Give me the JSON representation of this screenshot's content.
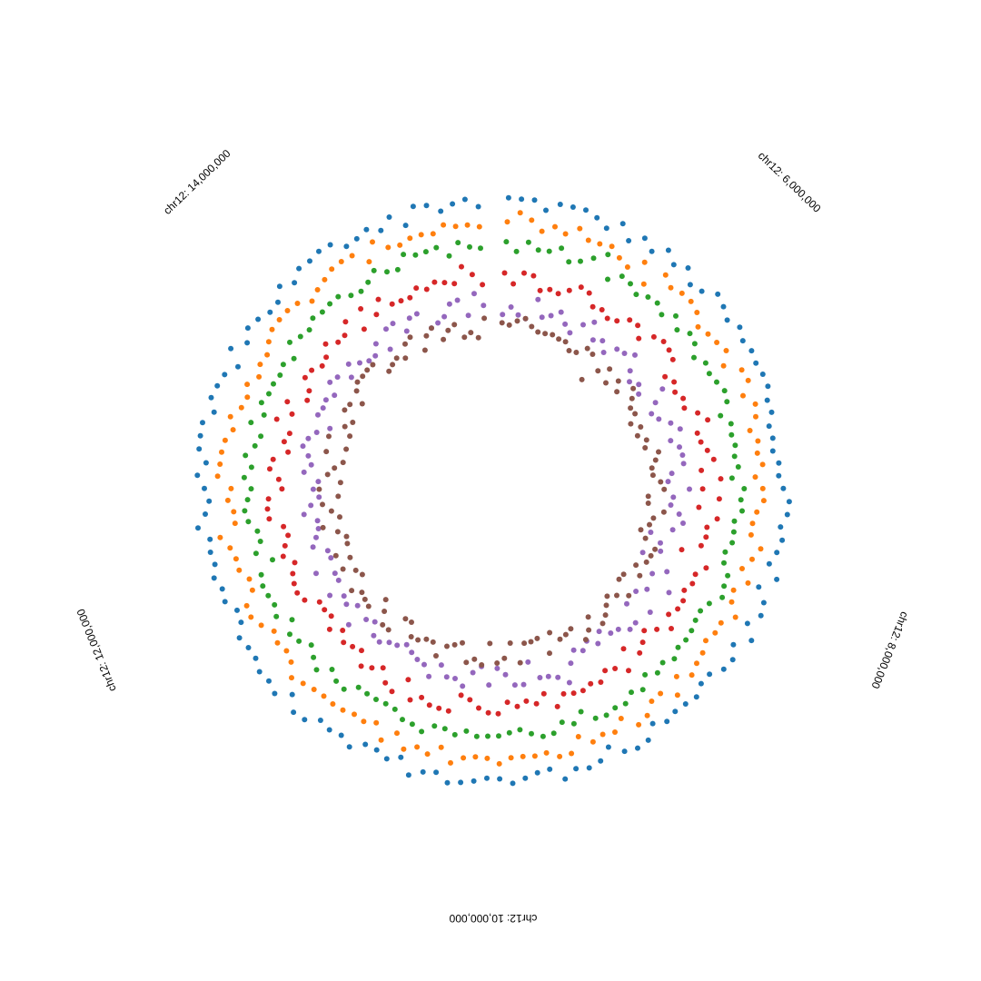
{
  "chart_data": {
    "type": "scatter",
    "layout": "circular",
    "title": "",
    "axis": {
      "chromosome": "chr12",
      "start": 4800000,
      "end": 15200000,
      "tick_labels": [
        {
          "position": 6000000,
          "label": "chr12: 6,000,000"
        },
        {
          "position": 8000000,
          "label": "chr12: 8,000,000"
        },
        {
          "position": 10000000,
          "label": "chr12: 10,000,000"
        },
        {
          "position": 12000000,
          "label": "chr12: 12,000,000"
        },
        {
          "position": 14000000,
          "label": "chr12: 14,000,000"
        }
      ]
    },
    "grid": false,
    "legend": "none",
    "points_per_track": 140,
    "series": [
      {
        "color": "#1f77b4",
        "level": 0.78,
        "jitter": 0.022
      },
      {
        "color": "#ff7f0e",
        "level": 0.72,
        "jitter": 0.022
      },
      {
        "color": "#2ca02c",
        "level": 0.66,
        "jitter": 0.02
      },
      {
        "color": "#d62728",
        "level": 0.58,
        "jitter": 0.03
      },
      {
        "color": "#9467bd",
        "level": 0.5,
        "jitter": 0.032
      },
      {
        "color": "#8c564b",
        "level": 0.44,
        "jitter": 0.03
      }
    ]
  }
}
